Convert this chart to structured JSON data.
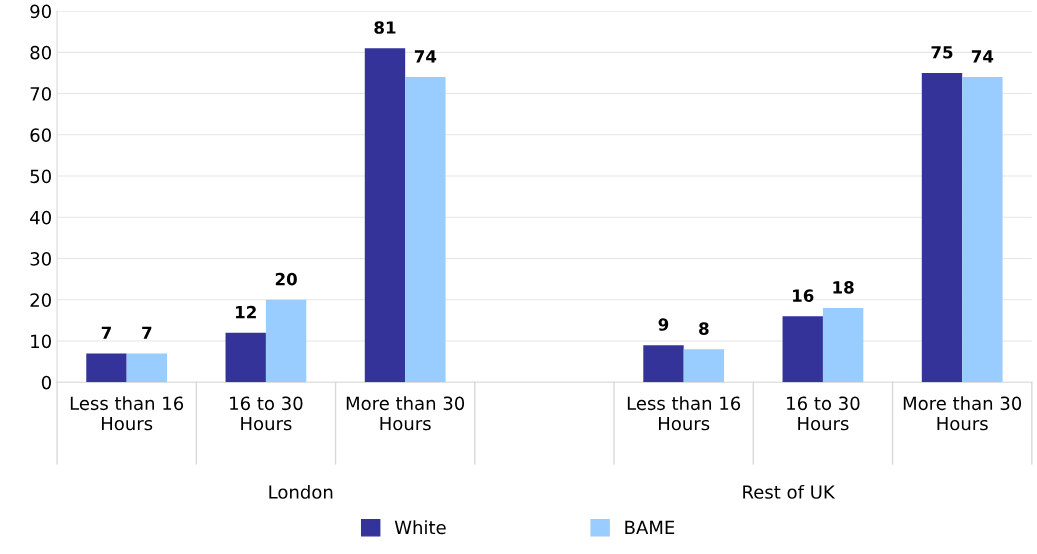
{
  "chart_data": {
    "type": "bar",
    "categories": [
      "Less than 16 Hours",
      "16 to 30 Hours",
      "More than 30 Hours",
      null,
      "Less than 16 Hours",
      "16 to 30 Hours",
      "More than 30 Hours"
    ],
    "series": [
      {
        "name": "White",
        "color": "#333399",
        "values": [
          7,
          12,
          81,
          null,
          9,
          16,
          75
        ]
      },
      {
        "name": "BAME",
        "color": "#99ccff",
        "values": [
          7,
          20,
          74,
          null,
          8,
          18,
          74
        ]
      }
    ],
    "ylim": [
      0,
      90
    ],
    "yticks": [
      0,
      10,
      20,
      30,
      40,
      50,
      60,
      70,
      80,
      90
    ],
    "grid": "y",
    "legend": "bottom",
    "data_labels": true,
    "annotations": [
      "London",
      "Rest of UK"
    ]
  }
}
